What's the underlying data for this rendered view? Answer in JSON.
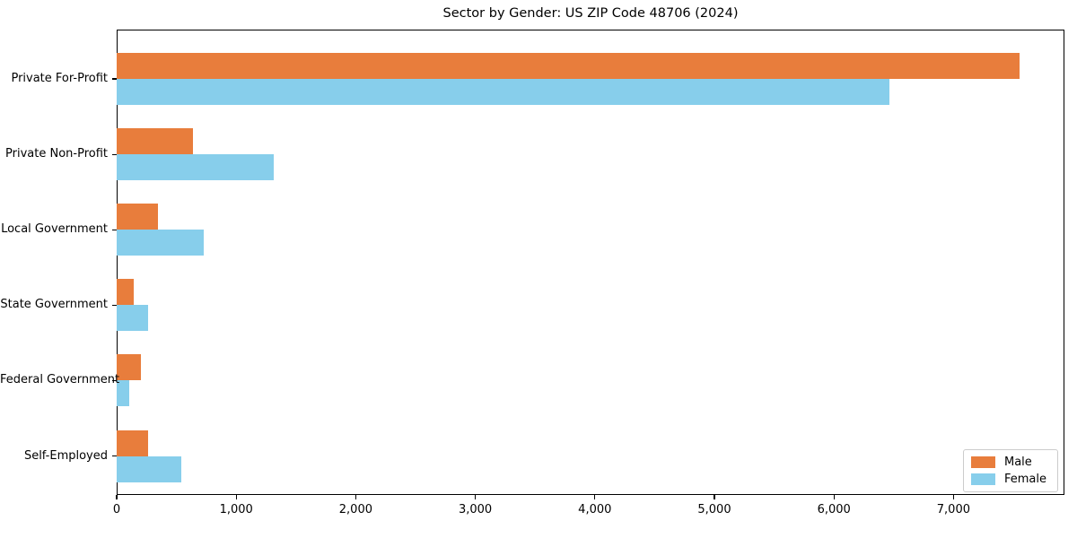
{
  "chart_data": {
    "type": "bar",
    "orientation": "horizontal",
    "title": "Sector by Gender: US ZIP Code 48706 (2024)",
    "xlabel": "",
    "ylabel": "",
    "categories": [
      "Private For-Profit",
      "Private Non-Profit",
      "Local Government",
      "State Government",
      "Federal Government",
      "Self-Employed"
    ],
    "series": [
      {
        "name": "Male",
        "color": "#E87D3C",
        "values": [
          7550,
          640,
          345,
          140,
          200,
          260
        ]
      },
      {
        "name": "Female",
        "color": "#87CEEB",
        "values": [
          6460,
          1310,
          725,
          260,
          105,
          540
        ]
      }
    ],
    "xlim": [
      0,
      7928
    ],
    "x_tick_values": [
      0,
      1000,
      2000,
      3000,
      4000,
      5000,
      6000,
      7000
    ],
    "x_tick_labels": [
      "0",
      "1,000",
      "2,000",
      "3,000",
      "4,000",
      "5,000",
      "6,000",
      "7,000"
    ],
    "grid": false,
    "legend_position": "lower right",
    "spine_color": "#000000",
    "background_color": "#ffffff"
  }
}
